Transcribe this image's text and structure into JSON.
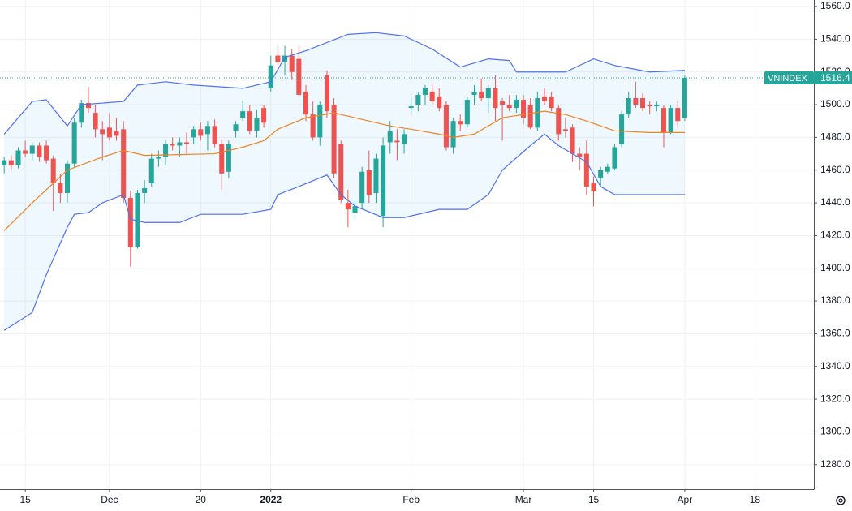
{
  "chart_data": {
    "type": "candlestick",
    "name": "VNINDEX",
    "x": [
      0,
      1,
      2,
      3,
      4,
      5,
      6,
      7,
      8,
      9,
      10,
      11,
      12,
      13,
      14,
      15,
      16,
      17,
      18,
      19,
      20,
      21,
      22,
      23,
      24,
      25,
      26,
      27,
      28,
      29,
      30,
      31,
      32,
      33,
      34,
      35,
      36,
      37,
      38,
      39,
      40,
      41,
      42,
      43,
      44,
      45,
      46,
      47,
      48,
      49,
      50,
      51,
      52,
      53,
      54,
      55,
      56,
      57,
      58,
      59,
      60,
      61,
      62,
      63,
      64,
      65,
      66,
      67,
      68,
      69,
      70,
      71,
      72,
      73,
      74,
      75,
      76,
      77,
      78,
      79,
      80,
      81,
      82,
      83,
      84,
      85,
      86,
      87,
      88,
      89,
      90,
      91,
      92,
      93,
      94,
      95,
      96,
      97
    ],
    "open": [
      1463,
      1466,
      1463,
      1472,
      1470,
      1475,
      1475,
      1467,
      1452,
      1446,
      1464,
      1489,
      1501,
      1495,
      1485,
      1486,
      1484,
      1485,
      1443,
      1413,
      1446,
      1452,
      1467,
      1468,
      1476,
      1475,
      1477,
      1480,
      1485,
      1482,
      1487,
      1476,
      1459,
      1484,
      1492,
      1496,
      1484,
      1498,
      1510,
      1530,
      1526,
      1530,
      1528,
      1508,
      1494,
      1480,
      1518,
      1500,
      1476,
      1440,
      1434,
      1440,
      1460,
      1446,
      1432,
      1477,
      1478,
      1476,
      1498,
      1500,
      1506,
      1508,
      1505,
      1500,
      1474,
      1490,
      1488,
      1506,
      1508,
      1504,
      1510,
      1502,
      1500,
      1498,
      1503,
      1500,
      1486,
      1505,
      1505,
      1498,
      1485,
      1486,
      1470,
      1470,
      1452,
      1455,
      1459,
      1461,
      1476,
      1494,
      1504,
      1504,
      1500,
      1499,
      1498,
      1483,
      1498,
      1492
    ],
    "high": [
      1468,
      1469,
      1474,
      1478,
      1477,
      1477,
      1478,
      1469,
      1458,
      1466,
      1492,
      1503,
      1511,
      1500,
      1490,
      1495,
      1492,
      1490,
      1447,
      1448,
      1454,
      1470,
      1472,
      1478,
      1480,
      1480,
      1483,
      1487,
      1489,
      1490,
      1491,
      1479,
      1478,
      1490,
      1502,
      1500,
      1497,
      1500,
      1530,
      1536,
      1536,
      1534,
      1536,
      1512,
      1502,
      1502,
      1521,
      1504,
      1478,
      1448,
      1442,
      1462,
      1472,
      1470,
      1480,
      1490,
      1485,
      1485,
      1505,
      1508,
      1512,
      1512,
      1510,
      1502,
      1492,
      1494,
      1505,
      1512,
      1516,
      1512,
      1518,
      1504,
      1506,
      1506,
      1506,
      1504,
      1508,
      1510,
      1508,
      1500,
      1492,
      1488,
      1474,
      1478,
      1456,
      1462,
      1464,
      1476,
      1496,
      1508,
      1514,
      1507,
      1502,
      1502,
      1500,
      1500,
      1502,
      1518
    ],
    "low": [
      1458,
      1460,
      1461,
      1468,
      1466,
      1465,
      1464,
      1435,
      1440,
      1440,
      1462,
      1486,
      1495,
      1480,
      1466,
      1478,
      1478,
      1440,
      1401,
      1412,
      1440,
      1450,
      1462,
      1463,
      1472,
      1468,
      1470,
      1476,
      1478,
      1472,
      1474,
      1448,
      1455,
      1480,
      1490,
      1482,
      1480,
      1486,
      1508,
      1524,
      1518,
      1515,
      1505,
      1490,
      1478,
      1475,
      1492,
      1455,
      1440,
      1425,
      1430,
      1436,
      1440,
      1440,
      1425,
      1470,
      1466,
      1470,
      1495,
      1496,
      1500,
      1500,
      1496,
      1472,
      1470,
      1484,
      1486,
      1500,
      1502,
      1495,
      1490,
      1478,
      1496,
      1495,
      1488,
      1485,
      1484,
      1500,
      1496,
      1478,
      1480,
      1465,
      1460,
      1445,
      1438,
      1450,
      1458,
      1460,
      1474,
      1492,
      1498,
      1496,
      1494,
      1496,
      1474,
      1482,
      1486,
      1490
    ],
    "close": [
      1466,
      1463,
      1472,
      1470,
      1475,
      1468,
      1466,
      1452,
      1446,
      1464,
      1489,
      1501,
      1498,
      1485,
      1482,
      1480,
      1481,
      1443,
      1413,
      1446,
      1449,
      1467,
      1468,
      1476,
      1475,
      1477,
      1476,
      1485,
      1481,
      1487,
      1476,
      1458,
      1476,
      1488,
      1496,
      1484,
      1492,
      1489,
      1524,
      1526,
      1530,
      1520,
      1506,
      1494,
      1480,
      1500,
      1496,
      1458,
      1442,
      1436,
      1438,
      1459,
      1445,
      1467,
      1475,
      1484,
      1477,
      1482,
      1499,
      1506,
      1510,
      1502,
      1498,
      1474,
      1490,
      1488,
      1503,
      1508,
      1504,
      1510,
      1498,
      1500,
      1498,
      1503,
      1492,
      1486,
      1504,
      1502,
      1498,
      1482,
      1484,
      1470,
      1468,
      1450,
      1447,
      1460,
      1462,
      1474,
      1494,
      1504,
      1500,
      1498,
      1499,
      1500,
      1483,
      1498,
      1490,
      1516.4
    ],
    "up_color": "#26a69a",
    "down_color": "#ef5350",
    "overlays": [
      {
        "color": "#4f6ff0",
        "x": [
          0,
          4,
          6,
          9,
          11,
          17,
          19,
          23,
          27,
          34,
          38,
          40,
          43,
          49,
          53,
          57,
          61,
          65,
          69,
          72,
          73,
          80,
          84,
          87,
          92,
          97
        ],
        "values": [
          1482,
          1502,
          1503,
          1487,
          1500,
          1502,
          1512,
          1514,
          1512,
          1510,
          1514,
          1529,
          1533,
          1543,
          1544,
          1542,
          1534,
          1523,
          1528,
          1527,
          1520,
          1520,
          1528,
          1524,
          1520,
          1521
        ]
      },
      {
        "color": "#4f6ff0",
        "x": [
          0,
          4,
          6,
          9,
          10,
          12,
          14,
          17,
          18,
          20,
          25,
          28,
          34,
          38,
          39,
          42,
          46,
          48,
          50,
          54,
          57,
          62,
          66,
          69,
          71,
          75,
          77,
          79,
          83,
          85,
          87,
          97
        ],
        "values": [
          1362,
          1373,
          1396,
          1425,
          1433,
          1434,
          1440,
          1445,
          1430,
          1428,
          1428,
          1433,
          1433,
          1436,
          1445,
          1450,
          1457,
          1445,
          1438,
          1431,
          1431,
          1436,
          1436,
          1445,
          1460,
          1475,
          1482,
          1475,
          1465,
          1450,
          1445,
          1445
        ]
      },
      {
        "color": "#f0821e",
        "x": [
          0,
          4,
          9,
          14,
          17,
          20,
          30,
          34,
          37,
          39,
          43,
          47,
          50,
          55,
          58,
          62,
          64,
          67,
          71,
          77,
          80,
          83,
          87,
          92,
          97
        ],
        "values": [
          1423,
          1440,
          1460,
          1468,
          1472,
          1469,
          1470,
          1474,
          1478,
          1485,
          1492,
          1495,
          1492,
          1487,
          1485,
          1482,
          1480,
          1482,
          1492,
          1496,
          1494,
          1490,
          1484,
          1483,
          1483
        ]
      }
    ],
    "band_fill": "rgba(33,150,243,0.07)",
    "xlim": [
      -0.6,
      115.4
    ],
    "xticks": [
      {
        "value": 3,
        "label": "15"
      },
      {
        "value": 15,
        "label": "Dec"
      },
      {
        "value": 28,
        "label": "20"
      },
      {
        "value": 38,
        "label": "2022"
      },
      {
        "value": 58,
        "label": "Feb"
      },
      {
        "value": 74,
        "label": "Mar"
      },
      {
        "value": 84,
        "label": "15"
      },
      {
        "value": 97,
        "label": "Apr"
      },
      {
        "value": 107,
        "label": "18"
      }
    ],
    "ylim": [
      1265,
      1564
    ],
    "yticks": [
      {
        "value": 1280,
        "label": "1280.0"
      },
      {
        "value": 1300,
        "label": "1300.0"
      },
      {
        "value": 1320,
        "label": "1320.0"
      },
      {
        "value": 1340,
        "label": "1340.0"
      },
      {
        "value": 1360,
        "label": "1360.0"
      },
      {
        "value": 1380,
        "label": "1380.0"
      },
      {
        "value": 1400,
        "label": "1400.0"
      },
      {
        "value": 1420,
        "label": "1420.0"
      },
      {
        "value": 1440,
        "label": "1440.0"
      },
      {
        "value": 1460,
        "label": "1460.0"
      },
      {
        "value": 1480,
        "label": "1480.0"
      },
      {
        "value": 1500,
        "label": "1500.0"
      },
      {
        "value": 1520,
        "label": "1520.0"
      },
      {
        "value": 1540,
        "label": "1540.0"
      },
      {
        "value": 1560,
        "label": "1560.0"
      }
    ],
    "grid": true
  }
}
